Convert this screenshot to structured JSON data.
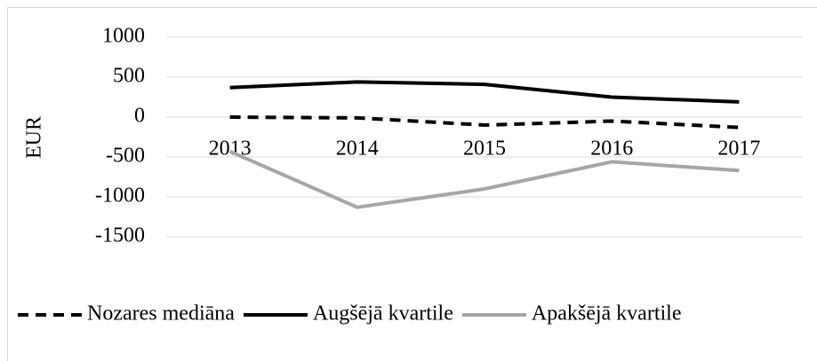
{
  "chart_data": {
    "type": "line",
    "y_label": "EUR",
    "categories": [
      "2013",
      "2014",
      "2015",
      "2016",
      "2017"
    ],
    "series": [
      {
        "name": "Nozares mediāna",
        "color": "#000000",
        "dash": true,
        "values": [
          0,
          -10,
          -100,
          -50,
          -130
        ]
      },
      {
        "name": "Augšējā kvartile",
        "color": "#000000",
        "dash": false,
        "values": [
          370,
          440,
          410,
          250,
          190
        ]
      },
      {
        "name": "Apakšējā kvartile",
        "color": "#a6a6a6",
        "dash": false,
        "values": [
          -430,
          -1130,
          -900,
          -560,
          -670
        ]
      }
    ],
    "ylim": [
      -1500,
      1000
    ],
    "yticks": [
      -1500,
      -1000,
      -500,
      0,
      500,
      1000
    ],
    "grid": true,
    "legend": "bottom"
  }
}
